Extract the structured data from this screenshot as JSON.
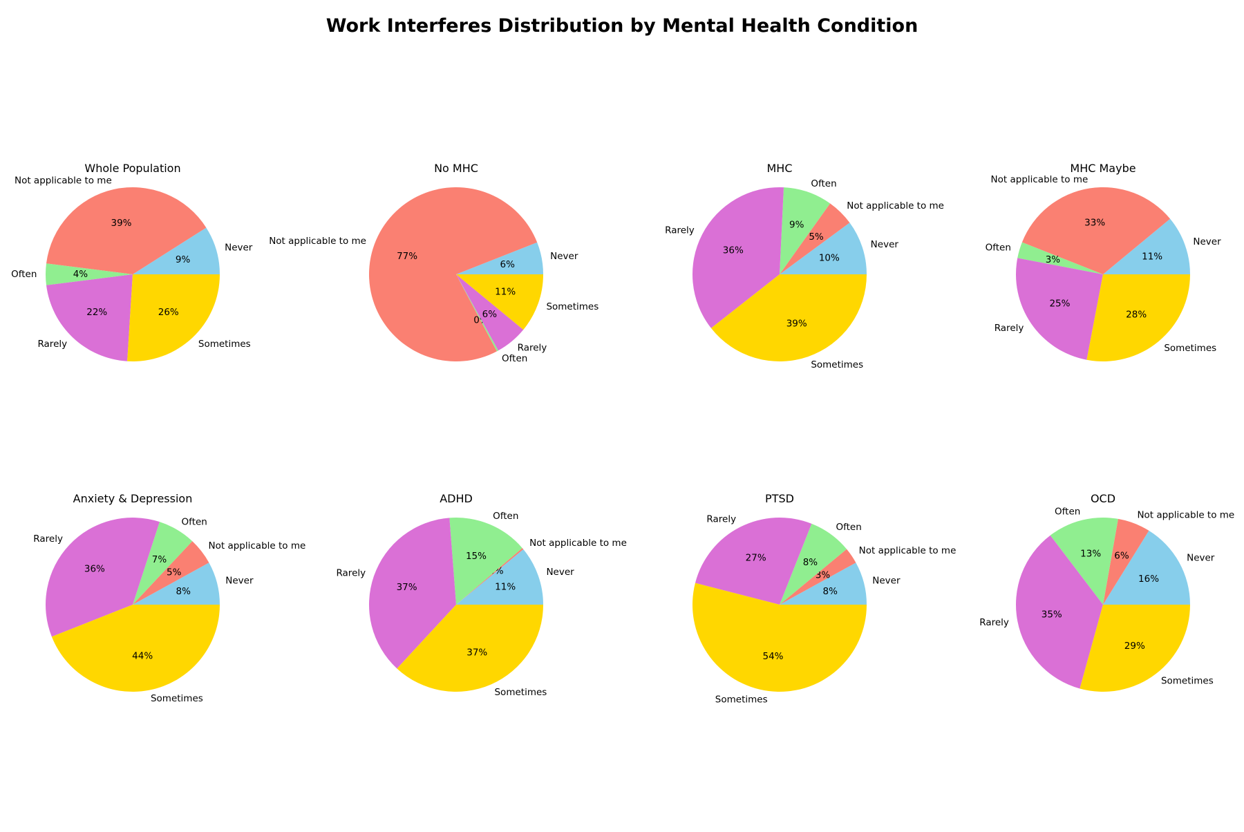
{
  "figure_title": "Work Interferes Distribution by Mental Health Condition",
  "colors": {
    "Never": "#87CEEB",
    "Not applicable to me": "#FA8072",
    "Often": "#90EE90",
    "Rarely": "#DA70D6",
    "Sometimes": "#FFD700"
  },
  "chart_data": [
    {
      "type": "pie",
      "title": "Whole Population",
      "categories": [
        "Never",
        "Not applicable to me",
        "Often",
        "Rarely",
        "Sometimes"
      ],
      "values": [
        9,
        39,
        4,
        22,
        26
      ],
      "pct_labels": [
        "9%",
        "39%",
        "4%",
        "22%",
        "26%"
      ],
      "start_angle": 0
    },
    {
      "type": "pie",
      "title": "No MHC",
      "categories": [
        "Never",
        "Not applicable to me",
        "Often",
        "Rarely",
        "Sometimes"
      ],
      "values": [
        6,
        77,
        0.3,
        6,
        11
      ],
      "pct_labels": [
        "6%",
        "77%",
        "0%",
        "6%",
        "11%"
      ],
      "start_angle": 0
    },
    {
      "type": "pie",
      "title": "MHC",
      "categories": [
        "Never",
        "Not applicable to me",
        "Often",
        "Rarely",
        "Sometimes"
      ],
      "values": [
        10,
        5,
        9,
        36,
        39
      ],
      "pct_labels": [
        "10%",
        "5%",
        "9%",
        "36%",
        "39%"
      ],
      "start_angle": 0
    },
    {
      "type": "pie",
      "title": "MHC Maybe",
      "categories": [
        "Never",
        "Not applicable to me",
        "Often",
        "Rarely",
        "Sometimes"
      ],
      "values": [
        11,
        33,
        3,
        25,
        28
      ],
      "pct_labels": [
        "11%",
        "33%",
        "3%",
        "25%",
        "28%"
      ],
      "start_angle": 0
    },
    {
      "type": "pie",
      "title": "Anxiety & Depression",
      "categories": [
        "Never",
        "Not applicable to me",
        "Often",
        "Rarely",
        "Sometimes"
      ],
      "values": [
        8,
        5,
        7,
        36,
        44
      ],
      "pct_labels": [
        "8%",
        "5%",
        "7%",
        "36%",
        "44%"
      ],
      "start_angle": 0
    },
    {
      "type": "pie",
      "title": "ADHD",
      "categories": [
        "Never",
        "Not applicable to me",
        "Often",
        "Rarely",
        "Sometimes"
      ],
      "values": [
        11,
        0.3,
        15,
        37,
        37
      ],
      "pct_labels": [
        "11%",
        "0%",
        "15%",
        "37%",
        "37%"
      ],
      "start_angle": 0
    },
    {
      "type": "pie",
      "title": "PTSD",
      "categories": [
        "Never",
        "Not applicable to me",
        "Often",
        "Rarely",
        "Sometimes"
      ],
      "values": [
        8,
        3,
        8,
        27,
        54
      ],
      "pct_labels": [
        "8%",
        "3%",
        "8%",
        "27%",
        "54%"
      ],
      "start_angle": 0
    },
    {
      "type": "pie",
      "title": "OCD",
      "categories": [
        "Never",
        "Not applicable to me",
        "Often",
        "Rarely",
        "Sometimes"
      ],
      "values": [
        16,
        6,
        13,
        35,
        29
      ],
      "pct_labels": [
        "16%",
        "6%",
        "13%",
        "35%",
        "29%"
      ],
      "start_angle": 0
    }
  ]
}
